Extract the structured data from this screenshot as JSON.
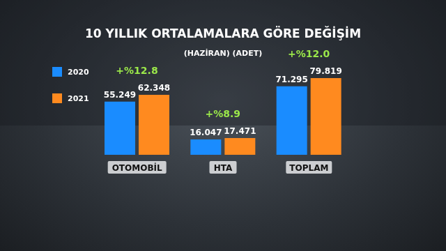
{
  "chart_data": {
    "type": "bar",
    "title": "10 YILLIK ORTALAMALARA GÖRE DEĞİŞİM",
    "subtitle": "(HAZİRAN) (ADET)",
    "categories": [
      "OTOMOBİL",
      "HTA",
      "TOPLAM"
    ],
    "series": [
      {
        "name": "2020",
        "color": "#1a8cff",
        "values": [
          55249,
          16047,
          71295
        ],
        "value_labels": [
          "55.249",
          "16.047",
          "71.295"
        ]
      },
      {
        "name": "2021",
        "color": "#ff8a1f",
        "values": [
          62348,
          17471,
          79819
        ],
        "value_labels": [
          "62.348",
          "17.471",
          "79.819"
        ]
      }
    ],
    "annotations": [
      "+%12.8",
      "+%8.9",
      "+%12.0"
    ],
    "data_labels": true,
    "legend": "top-left",
    "tick_labels": "x"
  }
}
